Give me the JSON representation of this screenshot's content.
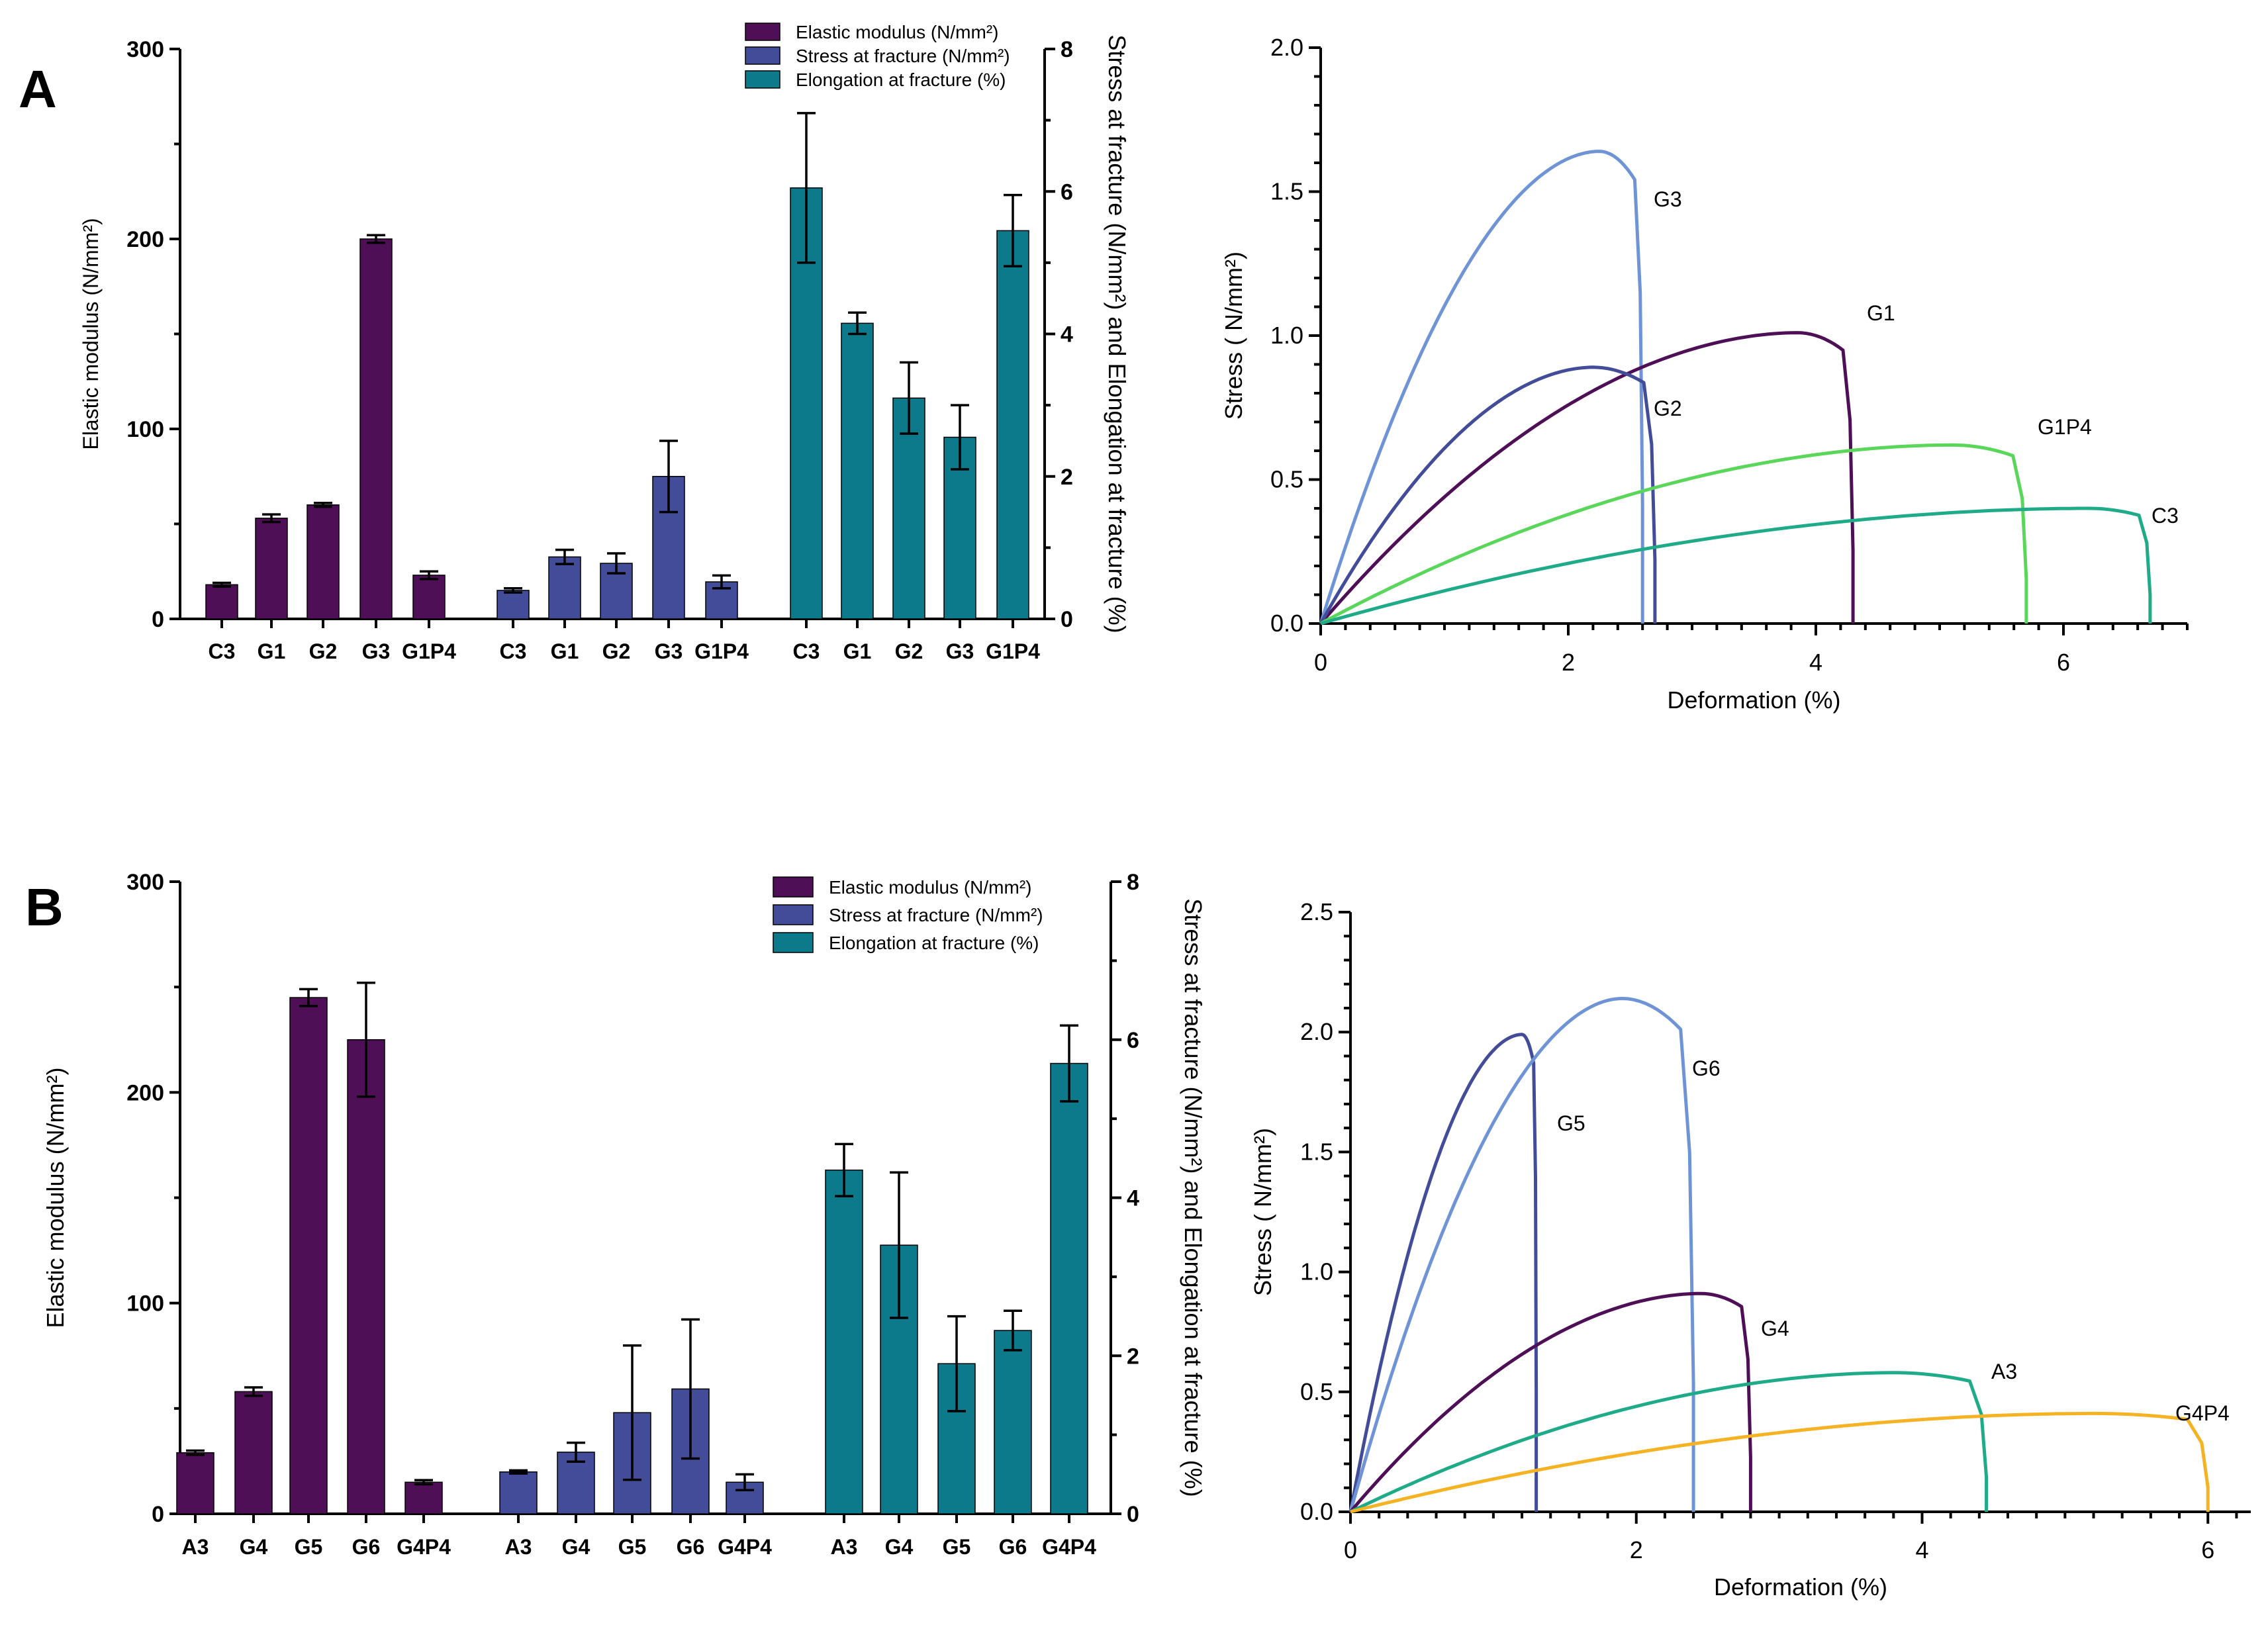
{
  "panels": {
    "a_letter": "A",
    "b_letter": "B"
  },
  "colors": {
    "elastic": "#4e0f57",
    "stress": "#434c98",
    "elongation": "#0d7a8c"
  },
  "chart_data": [
    {
      "id": "A-bar",
      "type": "bar",
      "left_axis": {
        "label": "Elastic modulus (N/mm²)",
        "ylim": [
          0,
          300
        ],
        "ticks": [
          0,
          100,
          200,
          300
        ]
      },
      "right_axis": {
        "label": "Stress at fracture (N/mm²) and Elongation at fracture (%)",
        "ylim": [
          0,
          8
        ],
        "ticks": [
          0,
          2,
          4,
          6,
          8
        ]
      },
      "legend": [
        "Elastic modulus  (N/mm²)",
        "Stress at fracture (N/mm²)",
        "Elongation at fracture (%)"
      ],
      "legend_position": "top-right",
      "series": [
        {
          "name": "Elastic modulus",
          "axis": "left",
          "categories": [
            "C3",
            "G1",
            "G2",
            "G3",
            "G1P4"
          ],
          "values": [
            18,
            53,
            60,
            200,
            23
          ],
          "errors": [
            1,
            2,
            1,
            2,
            2
          ]
        },
        {
          "name": "Stress at fracture",
          "axis": "right",
          "categories": [
            "C3",
            "G1",
            "G2",
            "G3",
            "G1P4"
          ],
          "values": [
            0.4,
            0.87,
            0.78,
            2.0,
            0.52
          ],
          "errors": [
            0.03,
            0.1,
            0.14,
            0.5,
            0.09
          ]
        },
        {
          "name": "Elongation at fracture",
          "axis": "right",
          "categories": [
            "C3",
            "G1",
            "G2",
            "G3",
            "G1P4"
          ],
          "values": [
            6.05,
            4.15,
            3.1,
            2.55,
            5.45
          ],
          "errors": [
            1.05,
            0.15,
            0.5,
            0.45,
            0.5
          ]
        }
      ]
    },
    {
      "id": "A-line",
      "type": "line",
      "xlabel": "Deformation (%)",
      "ylabel": "Stress ( N/mm²)",
      "xlim": [
        0,
        7
      ],
      "ylim": [
        0,
        2
      ],
      "xticks": [
        0,
        2,
        4,
        6
      ],
      "yticks": [
        "0.0",
        "0.5",
        "1.0",
        "1.5",
        "2.0"
      ],
      "series": [
        {
          "name": "G3",
          "color": "#6f94d6",
          "peak_x": 2.25,
          "peak_y": 1.64,
          "break_x": 2.6,
          "label": "G3"
        },
        {
          "name": "G1",
          "color": "#4e0f57",
          "peak_x": 3.85,
          "peak_y": 1.01,
          "break_x": 4.3,
          "label": "G1"
        },
        {
          "name": "G2",
          "color": "#434c98",
          "peak_x": 2.2,
          "peak_y": 0.89,
          "break_x": 2.7,
          "label": "G2"
        },
        {
          "name": "G1P4",
          "color": "#5ad65a",
          "peak_x": 5.1,
          "peak_y": 0.62,
          "break_x": 5.7,
          "label": "G1P4"
        },
        {
          "name": "C3",
          "color": "#1faa88",
          "peak_x": 6.2,
          "peak_y": 0.4,
          "break_x": 6.7,
          "label": "C3"
        }
      ]
    },
    {
      "id": "B-bar",
      "type": "bar",
      "left_axis": {
        "label": "Elastic modulus (N/mm²)",
        "ylim": [
          0,
          300
        ],
        "ticks": [
          0,
          100,
          200,
          300
        ]
      },
      "right_axis": {
        "label": "Stress at fracture (N/mm²) and Elongation at fracture (%)",
        "ylim": [
          0,
          8
        ],
        "ticks": [
          0,
          2,
          4,
          6,
          8
        ]
      },
      "legend": [
        "Elastic modulus    (N/mm²)",
        "Stress at fracture (N/mm²)",
        "Elongation at fracture (%)"
      ],
      "legend_position": "top-right",
      "series": [
        {
          "name": "Elastic modulus",
          "axis": "left",
          "categories": [
            "A3",
            "G4",
            "G5",
            "G6",
            "G4P4"
          ],
          "values": [
            29,
            58,
            245,
            225,
            15
          ],
          "errors": [
            1,
            2,
            4,
            27,
            1
          ]
        },
        {
          "name": "Stress at fracture",
          "axis": "right",
          "categories": [
            "A3",
            "G4",
            "G5",
            "G6",
            "G4P4"
          ],
          "values": [
            0.53,
            0.78,
            1.28,
            1.58,
            0.4
          ],
          "errors": [
            0.02,
            0.12,
            0.85,
            0.88,
            0.1
          ]
        },
        {
          "name": "Elongation at fracture",
          "axis": "right",
          "categories": [
            "A3",
            "G4",
            "G5",
            "G6",
            "G4P4"
          ],
          "values": [
            4.35,
            3.4,
            1.9,
            2.32,
            5.7
          ],
          "errors": [
            0.33,
            0.92,
            0.6,
            0.25,
            0.48
          ]
        }
      ]
    },
    {
      "id": "B-line",
      "type": "line",
      "xlabel": "Deformation (%)",
      "ylabel": "Stress ( N/mm²)",
      "xlim": [
        0,
        6.3
      ],
      "ylim": [
        0,
        2.5
      ],
      "xticks": [
        0,
        2,
        4,
        6
      ],
      "yticks": [
        "0.0",
        "0.5",
        "1.0",
        "1.5",
        "2.0",
        "2.5"
      ],
      "series": [
        {
          "name": "G5",
          "color": "#434c98",
          "peak_x": 1.2,
          "peak_y": 1.99,
          "break_x": 1.3,
          "label": "G5"
        },
        {
          "name": "G6",
          "color": "#6f94d6",
          "peak_x": 1.9,
          "peak_y": 2.14,
          "break_x": 2.4,
          "label": "G6"
        },
        {
          "name": "G4",
          "color": "#4e0f57",
          "peak_x": 2.45,
          "peak_y": 0.91,
          "break_x": 2.8,
          "label": "G4"
        },
        {
          "name": "A3",
          "color": "#1faa88",
          "peak_x": 3.8,
          "peak_y": 0.58,
          "break_x": 4.45,
          "label": "A3"
        },
        {
          "name": "G4P4",
          "color": "#f5b324",
          "peak_x": 5.2,
          "peak_y": 0.41,
          "break_x": 6.0,
          "label": "G4P4"
        }
      ]
    }
  ]
}
